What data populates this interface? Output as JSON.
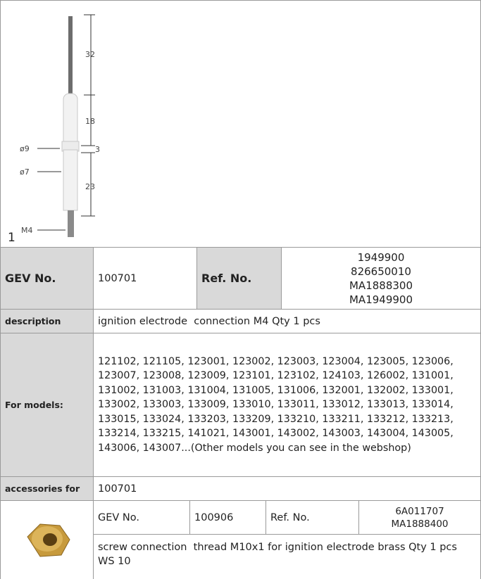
{
  "image": {
    "index": "1",
    "dimensions": [
      "32",
      "18",
      "3",
      "23"
    ],
    "diameters": [
      "ø9",
      "ø7"
    ],
    "thread": "M4"
  },
  "part": {
    "gev_label": "GEV No.",
    "gev_no": "100701",
    "ref_label": "Ref. No.",
    "ref_nos": [
      "1949900",
      "826650010",
      "MA1888300",
      "MA1949900"
    ]
  },
  "description": {
    "label": "description",
    "text": "ignition electrode  connection M4 Qty 1 pcs"
  },
  "models": {
    "label": "For models:",
    "text": "121102, 121105, 123001, 123002, 123003, 123004, 123005, 123006, 123007, 123008, 123009, 123101, 123102, 124103, 126002, 131001, 131002, 131003, 131004, 131005, 131006, 132001, 132002, 133001, 133002, 133003, 133009, 133010, 133011, 133012, 133013, 133014, 133015, 133024, 133203, 133209, 133210, 133211, 133212, 133213, 133214, 133215, 141021, 143001, 143002, 143003, 143004, 143005, 143006, 143007...(Other models you can see in the webshop)"
  },
  "accessories": {
    "label": "accessories for",
    "value": "100701",
    "items": [
      {
        "gev_label": "GEV No.",
        "gev_no": "100906",
        "ref_label": "Ref. No.",
        "ref_nos": [
          "6A011707",
          "MA1888400"
        ],
        "description": "screw connection  thread M10x1 for ignition electrode brass Qty 1 pcs WS 10"
      }
    ]
  }
}
